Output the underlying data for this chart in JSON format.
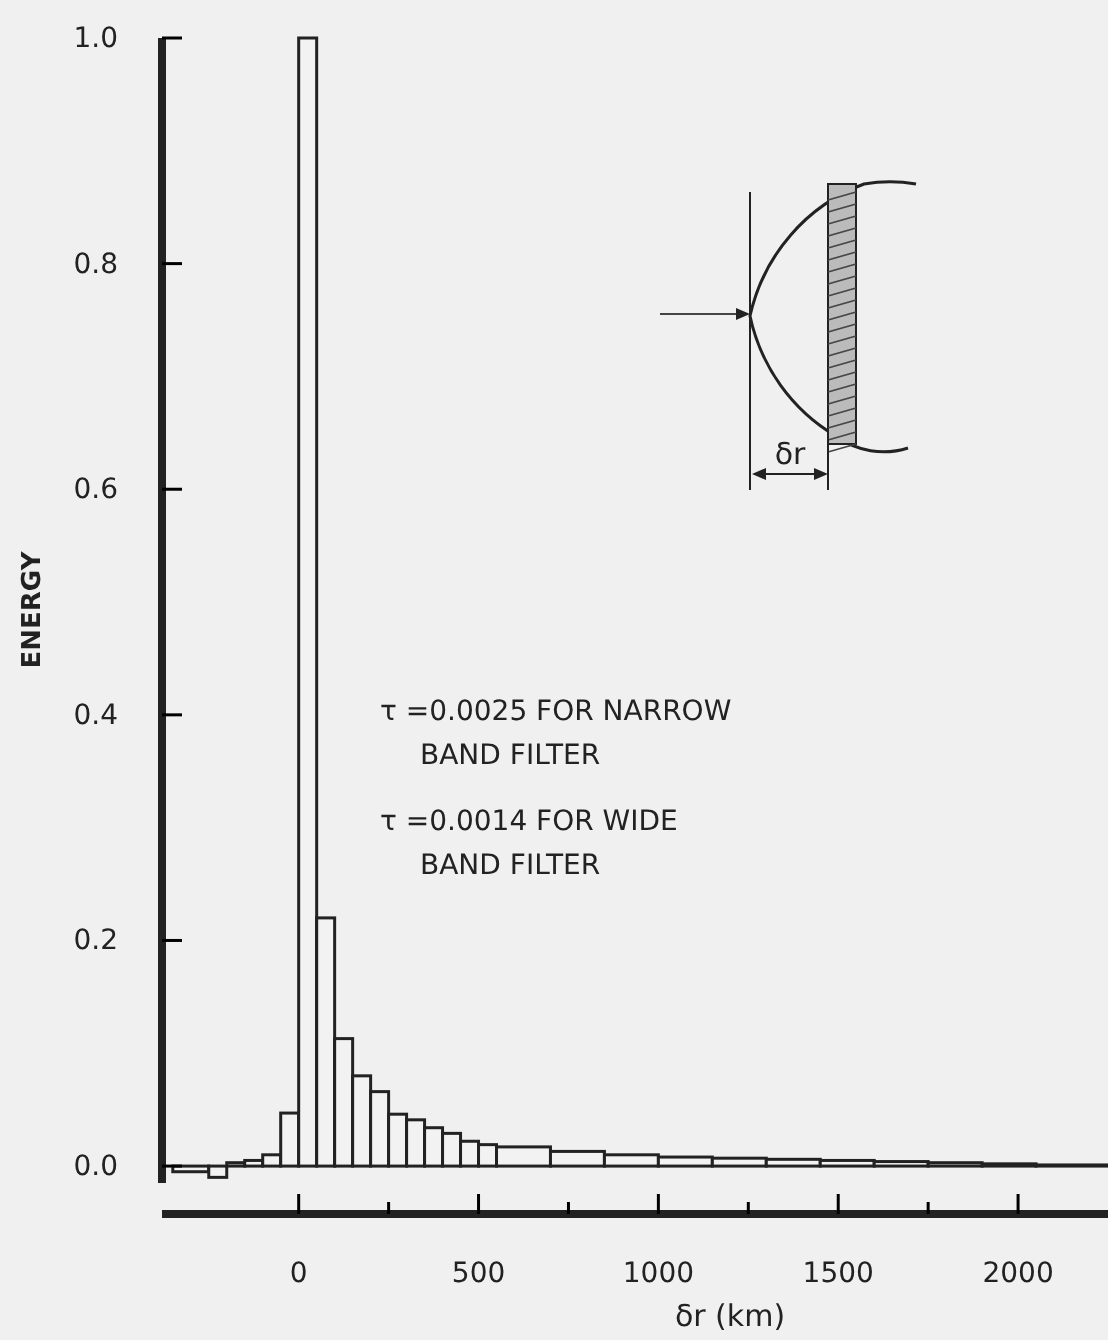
{
  "chart_data": {
    "type": "histogram",
    "xlabel": "δr (km)",
    "ylabel": "ENERGY",
    "bins": [
      -350,
      -250,
      -200,
      -150,
      -100,
      -50,
      0,
      50,
      100,
      150,
      200,
      250,
      300,
      350,
      400,
      450,
      500,
      550,
      700,
      850,
      1000,
      1150,
      1300,
      1450,
      1600,
      1750,
      1900,
      2050,
      2250
    ],
    "values": [
      -0.005,
      -0.01,
      0.003,
      0.005,
      0.01,
      0.047,
      1.0,
      0.22,
      0.113,
      0.08,
      0.066,
      0.046,
      0.041,
      0.034,
      0.029,
      0.022,
      0.019,
      0.017,
      0.013,
      0.01,
      0.008,
      0.007,
      0.006,
      0.005,
      0.004,
      0.003,
      0.002,
      0.001
    ],
    "color": "#f2f2f2",
    "xlim": [
      -380,
      2250
    ],
    "ylim": [
      -0.015,
      1.0
    ],
    "xticks": [
      0,
      {
        "value": 250,
        "label": null
      },
      500,
      {
        "value": 750,
        "label": null
      },
      1000,
      {
        "value": 1250,
        "label": null
      },
      1500,
      {
        "value": 1750,
        "label": null
      },
      2000
    ],
    "yticks": [
      {
        "value": 0,
        "label": "0.0"
      },
      0.2,
      0.4,
      0.6,
      0.8,
      {
        "value": 1,
        "label": "1.0"
      }
    ],
    "grid": false,
    "annotations": [
      "τ =0.0025 FOR NARROW BAND FILTER",
      "τ =0.0014 FOR WIDE BAND FILTER",
      "δr"
    ]
  }
}
